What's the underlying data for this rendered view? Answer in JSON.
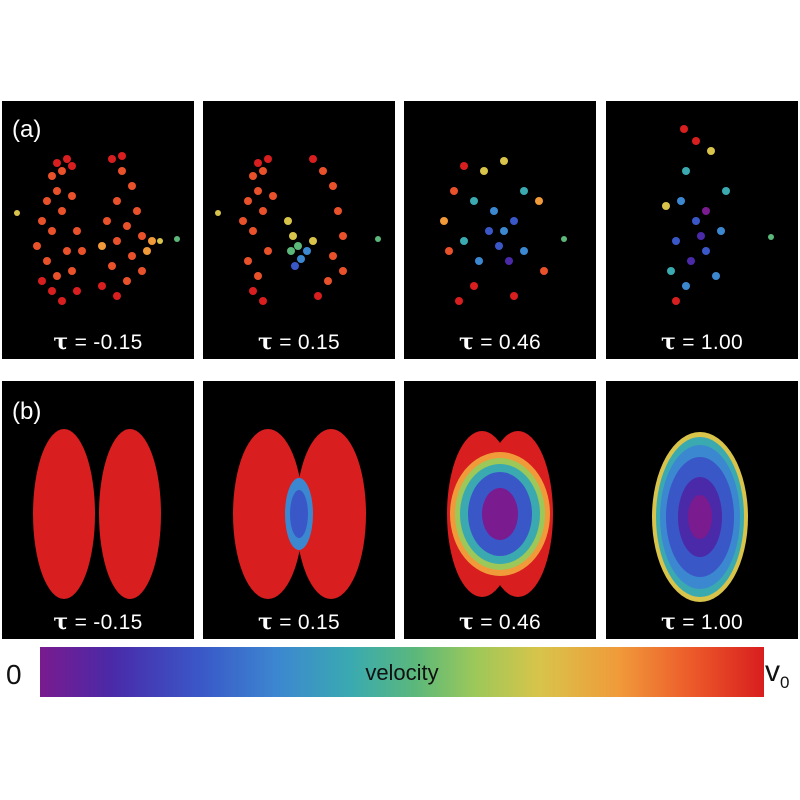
{
  "rows": [
    {
      "label": "(a)",
      "panels": [
        {
          "tau": "= -0.15"
        },
        {
          "tau": "= 0.15"
        },
        {
          "tau": "= 0.46"
        },
        {
          "tau": "= 1.00"
        }
      ]
    },
    {
      "label": "(b)",
      "panels": [
        {
          "tau": "= -0.15"
        },
        {
          "tau": "= 0.15"
        },
        {
          "tau": "= 0.46"
        },
        {
          "tau": "= 1.00"
        }
      ]
    }
  ],
  "tau_symbol": "τ",
  "colorbar": {
    "min_label": "0",
    "max_label": "v",
    "max_subscript": "0",
    "title": "velocity",
    "colors": [
      "#7a1b8f",
      "#3a57c8",
      "#3aaab0",
      "#9cc85a",
      "#f09a3a",
      "#d81e1e"
    ]
  }
}
